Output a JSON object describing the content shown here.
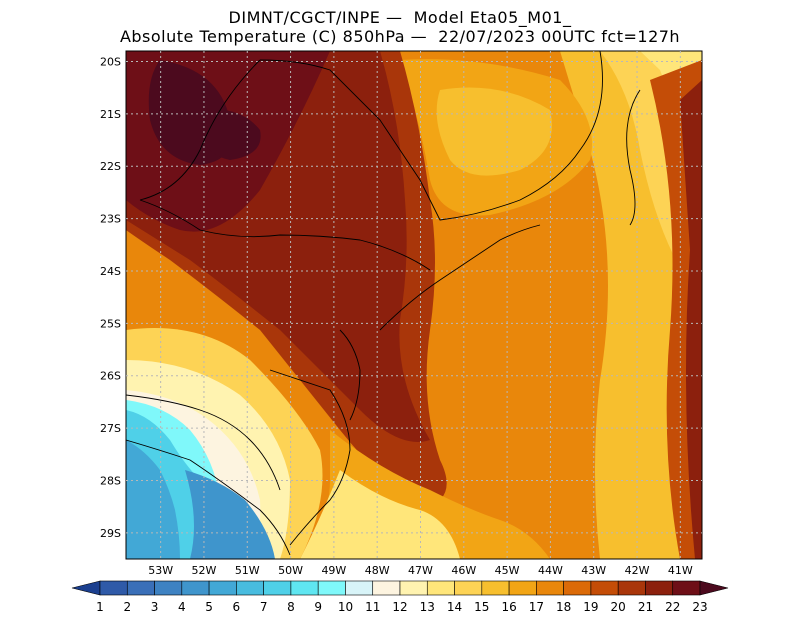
{
  "title": {
    "line1": "DIMNT/CGCT/INPE —  Model Eta05_M01_",
    "line2": "Absolute Temperature (C) 850hPa —  22/07/2023 00UTC fct=127h"
  },
  "map": {
    "lat_labels": [
      "20S",
      "21S",
      "22S",
      "23S",
      "24S",
      "25S",
      "26S",
      "27S",
      "28S",
      "29S"
    ],
    "lon_labels": [
      "53W",
      "52W",
      "51W",
      "50W",
      "49W",
      "48W",
      "47W",
      "46W",
      "45W",
      "44W",
      "43W",
      "42W",
      "41W"
    ],
    "grid": true,
    "lat_range": [
      -29.5,
      -19.8
    ],
    "lon_range": [
      -53.8,
      -40.5
    ]
  },
  "colorbar": {
    "labels": [
      "1",
      "2",
      "3",
      "4",
      "5",
      "6",
      "7",
      "8",
      "9",
      "10",
      "11",
      "12",
      "13",
      "14",
      "15",
      "16",
      "17",
      "18",
      "19",
      "20",
      "21",
      "22",
      "23"
    ],
    "colors": [
      "#1b3f8f",
      "#2f5aa8",
      "#3a6fb8",
      "#3e82c2",
      "#3f95cc",
      "#42a8d6",
      "#48bcdf",
      "#4fd0e8",
      "#5fe6f1",
      "#7ff8fa",
      "#d8f4f8",
      "#fdf4e0",
      "#fff3b0",
      "#ffe67a",
      "#fdd355",
      "#f7bf2e",
      "#f2a515",
      "#e9870b",
      "#db6a08",
      "#c44d07",
      "#a9360a",
      "#8c200d",
      "#6e0f17",
      "#4c0a1e"
    ]
  }
}
